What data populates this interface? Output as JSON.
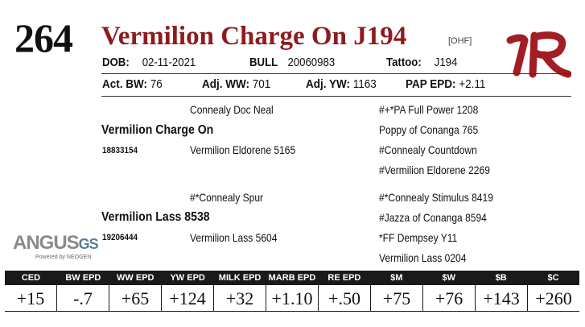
{
  "lot_number": "264",
  "animal_name": "Vermilion Charge On J194",
  "status_badge": "[OHF]",
  "details": {
    "dob_label": "DOB:",
    "dob": "02-11-2021",
    "sex": "BULL",
    "registration": "20060983",
    "tattoo_label": "Tattoo:",
    "tattoo": "J194"
  },
  "performance": {
    "bw_label": "Act. BW:",
    "bw": "76",
    "ww_label": "Adj. WW:",
    "ww": "701",
    "yw_label": "Adj. YW:",
    "yw": "1163",
    "pap_label": "PAP EPD:",
    "pap": "+2.11"
  },
  "pedigree": {
    "sire": "Vermilion Charge On",
    "sire_reg": "18833154",
    "sire_sire": "Connealy Doc Neal",
    "sire_dam": "Vermilion Eldorene 5165",
    "sss": "#+*PA Full Power 1208",
    "ssd": "Poppy of Conanga 765",
    "sds": "#Connealy Countdown",
    "sdd": "#Vermilion Eldorene 2269",
    "dam": "Vermilion Lass 8538",
    "dam_reg": "19206444",
    "dam_sire": "#*Connealy Spur",
    "dam_dam": "Vermilion Lass 5604",
    "dss": "#*Connealy Stimulus 8419",
    "dsd": "#Jazza of Conanga 8594",
    "dds": "*FF Dempsey Y11",
    "ddd": "Vermilion Lass 0204"
  },
  "logo": {
    "brand_text": "ANGUS",
    "brand_suffix": "GS",
    "powered_by": "Powered by NEOGEN"
  },
  "epds": {
    "headers": [
      "CED",
      "BW EPD",
      "WW EPD",
      "YW EPD",
      "MILK EPD",
      "MARB EPD",
      "RE EPD",
      "$M",
      "$W",
      "$B",
      "$C"
    ],
    "values": [
      "+15",
      "-.7",
      "+65",
      "+124",
      "+32",
      "+1.10",
      "+.50",
      "+75",
      "+76",
      "+143",
      "+260"
    ]
  },
  "colors": {
    "name_red": "#8e1b1f",
    "vr_brand_red": "#a31d24",
    "header_bg": "#1a1a1a"
  }
}
